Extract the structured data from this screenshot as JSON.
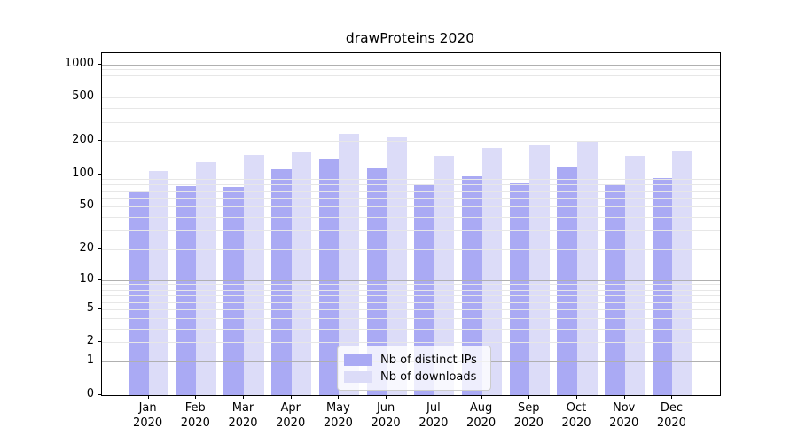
{
  "chart_data": {
    "type": "bar",
    "title": "drawProteins 2020",
    "categories": [
      "Jan 2020",
      "Feb 2020",
      "Mar 2020",
      "Apr 2020",
      "May 2020",
      "Jun 2020",
      "Jul 2020",
      "Aug 2020",
      "Sep 2020",
      "Oct 2020",
      "Nov 2020",
      "Dec 2020"
    ],
    "series": [
      {
        "name": "Nb of distinct IPs",
        "color": "#aaaaf4",
        "values": [
          68,
          78,
          76,
          111,
          135,
          113,
          79,
          96,
          84,
          117,
          80,
          92
        ]
      },
      {
        "name": "Nb of downloads",
        "color": "#dcdcf8",
        "values": [
          107,
          129,
          149,
          160,
          232,
          215,
          148,
          175,
          182,
          203,
          147,
          164
        ]
      }
    ],
    "yticks": [
      0,
      1,
      2,
      5,
      10,
      20,
      50,
      100,
      200,
      500,
      1000
    ],
    "scale": "log(value+1)",
    "ylim": [
      0,
      1260
    ],
    "xlabel": "",
    "ylabel": "",
    "grid": "major and log-minor horizontal gridlines, drawn over bars",
    "legend_position": "lower center"
  },
  "colors": {
    "bar_distinct_ips": "#aaaaf4",
    "bar_downloads": "#dcdcf8",
    "grid_major": "#b0b0b0",
    "grid_minor": "#e7e7e7",
    "spine": "#000000",
    "legend_border": "#cccccc",
    "legend_background": "rgba(255,255,255,0.8)"
  }
}
